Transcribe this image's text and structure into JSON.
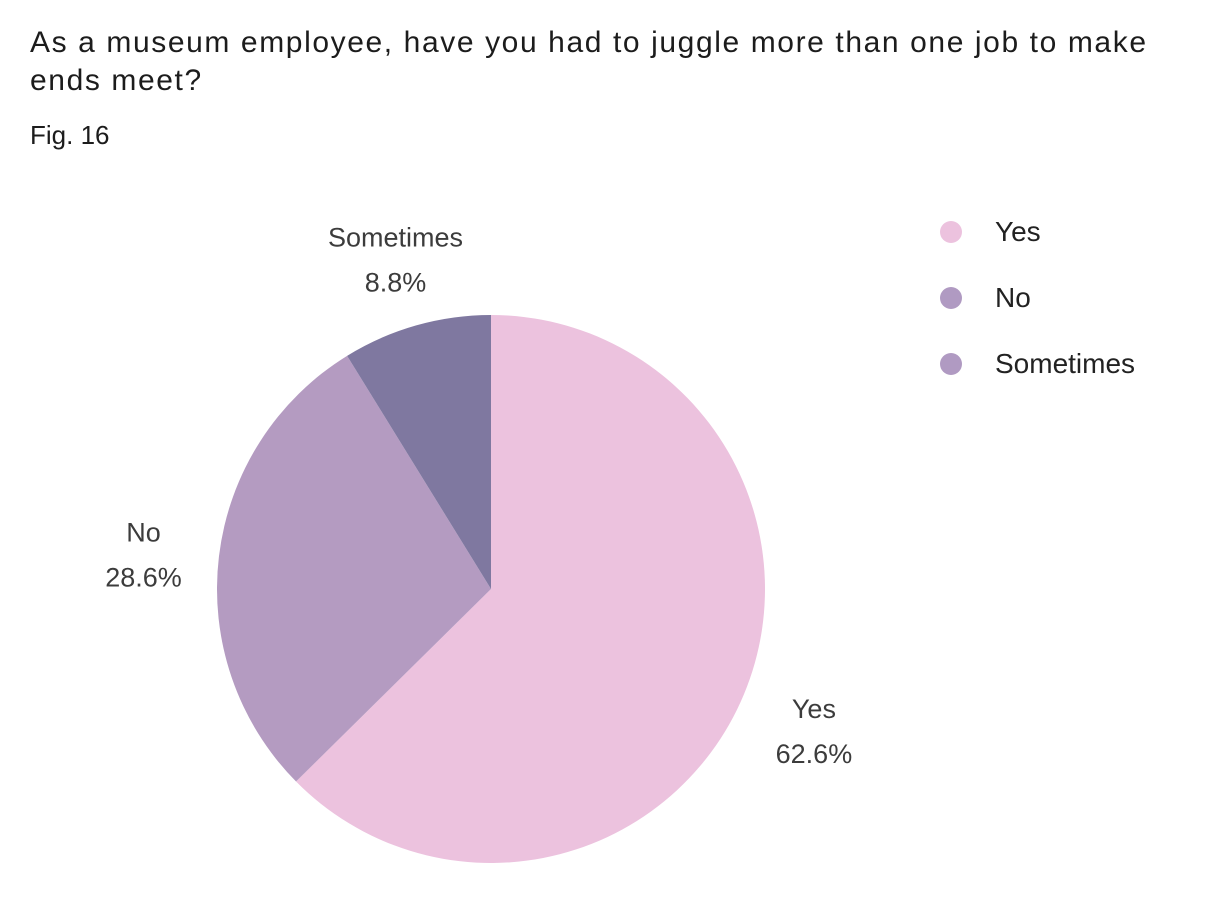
{
  "header": {
    "title": "As a museum employee, have you had to juggle more than one job to make ends meet?",
    "figure_label": "Fig. 16"
  },
  "legend": {
    "items": [
      {
        "label": "Yes",
        "color": "#ecc2de"
      },
      {
        "label": "No",
        "color": "#b09ac2"
      },
      {
        "label": "Sometimes",
        "color": "#b09ac2"
      }
    ]
  },
  "chart_data": {
    "type": "pie",
    "title": "As a museum employee, have you had to juggle more than one job to make ends meet?",
    "subtitle": "Fig. 16",
    "slices": [
      {
        "label": "Yes",
        "value": 62.6,
        "value_label": "62.6%",
        "color": "#ecc2de"
      },
      {
        "label": "No",
        "value": 28.6,
        "value_label": "28.6%",
        "color": "#b49bc1"
      },
      {
        "label": "Sometimes",
        "value": 8.8,
        "value_label": "8.8%",
        "color": "#7f78a0"
      }
    ],
    "start_angle": "12 o'clock",
    "direction": "clockwise",
    "legend_position": "top-right"
  }
}
